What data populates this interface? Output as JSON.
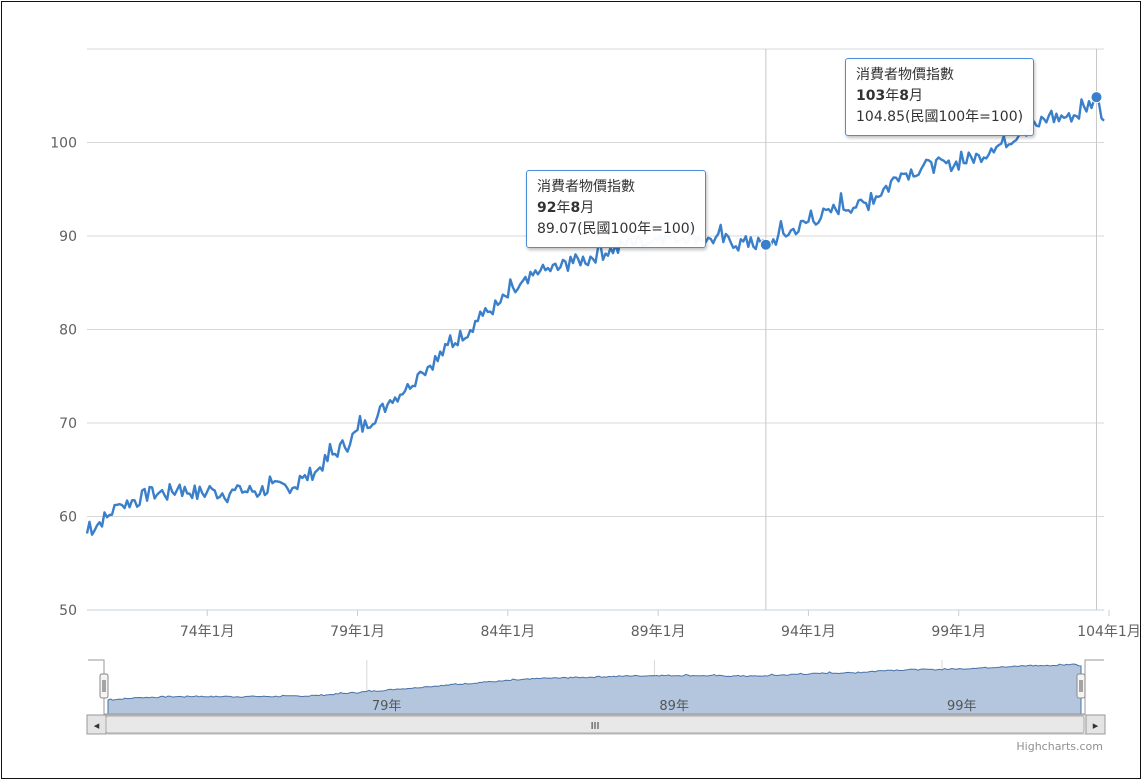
{
  "chart_data": {
    "type": "line",
    "series": [
      {
        "name": "消費者物價指數",
        "color": "#3a7fc9"
      }
    ],
    "ylim": [
      50,
      110
    ],
    "y_ticks": [
      "50",
      "60",
      "70",
      "80",
      "90",
      "100"
    ],
    "x_ticks": [
      "74年1月",
      "79年1月",
      "84年1月",
      "89年1月",
      "94年1月",
      "99年1月",
      "104年1月"
    ],
    "anchors": [
      {
        "t": "70年1月",
        "v": 58.2
      },
      {
        "t": "71年1月",
        "v": 61.0
      },
      {
        "t": "72年1月",
        "v": 62.3
      },
      {
        "t": "73年1月",
        "v": 62.8
      },
      {
        "t": "74年1月",
        "v": 62.5
      },
      {
        "t": "75年1月",
        "v": 62.6
      },
      {
        "t": "76年1月",
        "v": 62.9
      },
      {
        "t": "77年1月",
        "v": 63.4
      },
      {
        "t": "78年1月",
        "v": 66.0
      },
      {
        "t": "79年1月",
        "v": 69.0
      },
      {
        "t": "80年1月",
        "v": 72.0
      },
      {
        "t": "81年1月",
        "v": 75.0
      },
      {
        "t": "82年1月",
        "v": 78.0
      },
      {
        "t": "83年1月",
        "v": 81.0
      },
      {
        "t": "84年1月",
        "v": 83.5
      },
      {
        "t": "85年1月",
        "v": 86.0
      },
      {
        "t": "86年1月",
        "v": 87.0
      },
      {
        "t": "87年1月",
        "v": 88.0
      },
      {
        "t": "88年1月",
        "v": 89.2
      },
      {
        "t": "89年1月",
        "v": 89.8
      },
      {
        "t": "90年1月",
        "v": 90.0
      },
      {
        "t": "91年1月",
        "v": 89.6
      },
      {
        "t": "92年1月",
        "v": 89.2
      },
      {
        "t": "92年8月",
        "v": 89.07
      },
      {
        "t": "93年1月",
        "v": 89.8
      },
      {
        "t": "94年1月",
        "v": 91.5
      },
      {
        "t": "95年1月",
        "v": 93.0
      },
      {
        "t": "96年1月",
        "v": 93.5
      },
      {
        "t": "97年1月",
        "v": 96.5
      },
      {
        "t": "98年1月",
        "v": 97.5
      },
      {
        "t": "99年1月",
        "v": 97.8
      },
      {
        "t": "100年1月",
        "v": 99.0
      },
      {
        "t": "101年1月",
        "v": 101.0
      },
      {
        "t": "102年1月",
        "v": 102.5
      },
      {
        "t": "103年1月",
        "v": 103.0
      },
      {
        "t": "103年8月",
        "v": 104.85
      },
      {
        "t": "103年11月",
        "v": 102.5
      }
    ],
    "navigator": {
      "labels": [
        "79年",
        "89年",
        "99年"
      ]
    }
  },
  "tooltips": [
    {
      "series": "消費者物價指數",
      "date_num": "92",
      "date_unit1": "年",
      "date_num2": "8",
      "date_unit2": "月",
      "value": "89.07(民國100年=100)"
    },
    {
      "series": "消費者物價指數",
      "date_num": "103",
      "date_unit1": "年",
      "date_num2": "8",
      "date_unit2": "月",
      "value": "104.85(民國100年=100)"
    }
  ],
  "scrollbar": {
    "left_arrow": "◂",
    "right_arrow": "▸",
    "grip": "III"
  },
  "credits": "Highcharts.com"
}
